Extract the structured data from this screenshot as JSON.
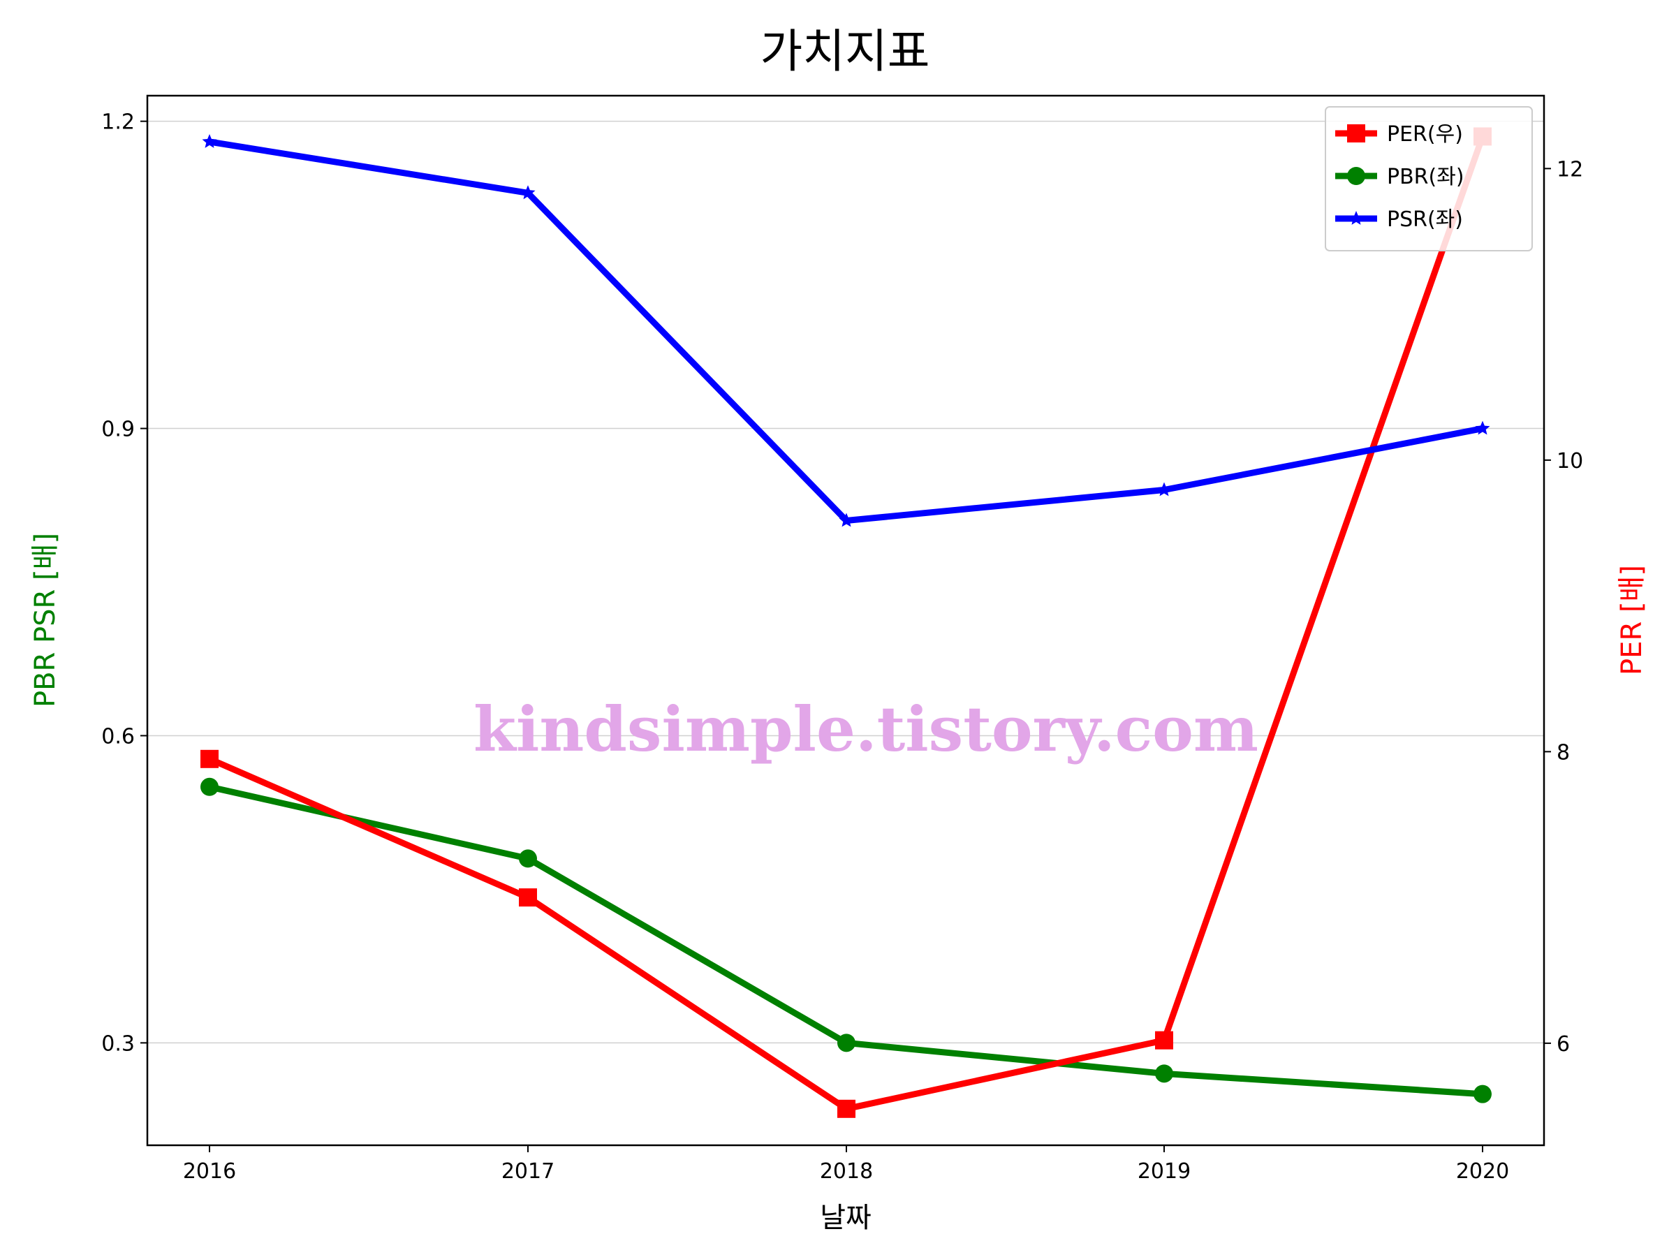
{
  "chart_data": {
    "type": "line",
    "title": "가치지표",
    "xlabel": "날짜",
    "ylabel_left": "PBR PSR [배]",
    "ylabel_right": "PER [배]",
    "categories": [
      "2016",
      "2017",
      "2018",
      "2019",
      "2020"
    ],
    "left_axis": {
      "ylim": [
        0.2,
        1.225
      ],
      "ticks": [
        0.3,
        0.6,
        0.9,
        1.2
      ],
      "tick_labels": [
        "0.3",
        "0.6",
        "0.9",
        "1.2"
      ],
      "color": "#008000"
    },
    "right_axis": {
      "ylim": [
        5.3,
        12.5
      ],
      "ticks": [
        6,
        8,
        10,
        12
      ],
      "tick_labels": [
        "6",
        "8",
        "10",
        "12"
      ],
      "color": "#ff0000"
    },
    "series": [
      {
        "name": "PER(우)",
        "axis": "right",
        "color": "#ff0000",
        "marker": "square",
        "values": [
          7.95,
          7.0,
          5.55,
          6.02,
          12.22
        ]
      },
      {
        "name": "PBR(좌)",
        "axis": "left",
        "color": "#008000",
        "marker": "circle",
        "values": [
          0.55,
          0.48,
          0.3,
          0.27,
          0.25
        ]
      },
      {
        "name": "PSR(좌)",
        "axis": "left",
        "color": "#0000ff",
        "marker": "star",
        "values": [
          1.18,
          1.13,
          0.81,
          0.84,
          0.9
        ]
      }
    ],
    "grid": "horizontal",
    "legend_position": "top-right",
    "watermark": "kindsimple.tistory.com"
  }
}
